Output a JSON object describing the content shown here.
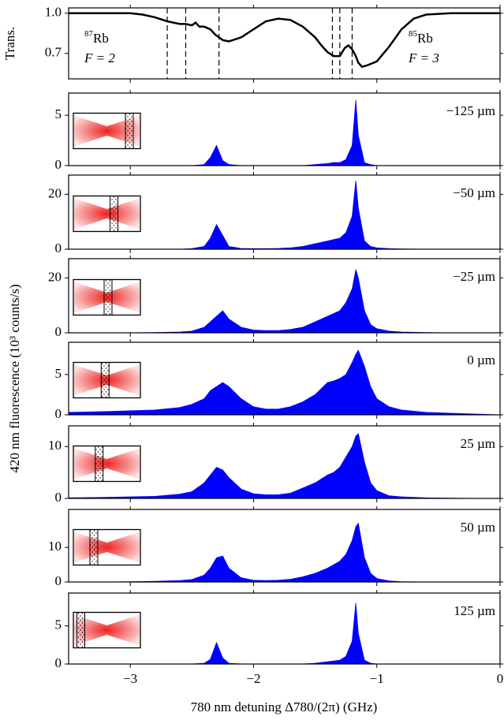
{
  "chart_data": [
    {
      "type": "line",
      "ylabel": "Trans.",
      "x": [
        -3.5,
        -3.0,
        -2.9,
        -2.8,
        -2.7,
        -2.6,
        -2.55,
        -2.5,
        -2.47,
        -2.44,
        -2.4,
        -2.35,
        -2.31,
        -2.28,
        -2.25,
        -2.2,
        -2.1,
        -2.0,
        -1.9,
        -1.8,
        -1.7,
        -1.6,
        -1.5,
        -1.45,
        -1.4,
        -1.35,
        -1.3,
        -1.26,
        -1.23,
        -1.2,
        -1.17,
        -1.15,
        -1.12,
        -1.08,
        -1.0,
        -0.9,
        -0.8,
        -0.7,
        -0.6,
        -0.4,
        0
      ],
      "values": [
        1.0,
        1.0,
        0.99,
        0.97,
        0.94,
        0.92,
        0.92,
        0.91,
        0.93,
        0.9,
        0.9,
        0.88,
        0.84,
        0.82,
        0.8,
        0.79,
        0.82,
        0.88,
        0.94,
        0.96,
        0.95,
        0.9,
        0.82,
        0.76,
        0.71,
        0.68,
        0.68,
        0.74,
        0.76,
        0.73,
        0.68,
        0.63,
        0.6,
        0.61,
        0.64,
        0.75,
        0.88,
        0.96,
        0.99,
        1.0,
        1.0
      ],
      "color": "#000000",
      "vlines": [
        -2.7,
        -2.55,
        -2.28,
        -1.36,
        -1.3,
        -1.2
      ],
      "ylim": [
        0.51,
        1.04
      ],
      "yticks": [
        {
          "value": 0.7,
          "label": "0.7"
        },
        {
          "value": 1,
          "label": "1.0"
        }
      ],
      "annotations": [
        {
          "mass": "87",
          "element": "Rb",
          "level": "F = 2"
        },
        {
          "mass": "85",
          "element": "Rb",
          "level": "F = 3"
        }
      ]
    },
    {
      "type": "area",
      "label": "−125 µm",
      "color": "#0000ff",
      "ylim": [
        0,
        7.2
      ],
      "yticks": [
        0,
        5
      ],
      "x": [
        -3.5,
        -3.2,
        -3.0,
        -2.8,
        -2.6,
        -2.5,
        -2.4,
        -2.35,
        -2.3,
        -2.25,
        -2.2,
        -2.1,
        -2.0,
        -1.9,
        -1.8,
        -1.7,
        -1.6,
        -1.5,
        -1.4,
        -1.35,
        -1.3,
        -1.25,
        -1.2,
        -1.17,
        -1.15,
        -1.1,
        -1.05,
        -1.0,
        -0.9,
        -0.8,
        -0.6,
        -0.4,
        -0.2,
        0
      ],
      "values": [
        0,
        0,
        0,
        0,
        0,
        0,
        0.1,
        0.8,
        2.0,
        0.5,
        0.1,
        0,
        0,
        0,
        0,
        0,
        0,
        0.1,
        0.2,
        0.3,
        0.3,
        0.6,
        2.0,
        6.5,
        3.0,
        0.3,
        0.1,
        0,
        0,
        0,
        0,
        0,
        0,
        0
      ]
    },
    {
      "type": "area",
      "label": "−50 µm",
      "color": "#0000ff",
      "ylim": [
        0,
        27
      ],
      "yticks": [
        0,
        20
      ],
      "x": [
        -3.5,
        -3.2,
        -3.0,
        -2.8,
        -2.6,
        -2.5,
        -2.4,
        -2.35,
        -2.3,
        -2.25,
        -2.2,
        -2.1,
        -2.0,
        -1.9,
        -1.8,
        -1.7,
        -1.6,
        -1.5,
        -1.4,
        -1.35,
        -1.3,
        -1.25,
        -1.2,
        -1.17,
        -1.15,
        -1.1,
        -1.05,
        -1.0,
        -0.9,
        -0.8,
        -0.6,
        -0.4,
        -0.2,
        0
      ],
      "values": [
        0,
        0,
        0,
        0,
        0,
        0.2,
        1,
        4,
        9,
        5,
        1,
        0.3,
        0.2,
        0.2,
        0.3,
        0.5,
        1,
        2,
        3,
        3.5,
        4,
        6,
        12,
        25,
        15,
        3,
        1,
        0.5,
        0.2,
        0.1,
        0,
        0,
        0,
        0
      ]
    },
    {
      "type": "area",
      "label": "−25 µm",
      "color": "#0000ff",
      "ylim": [
        0,
        27
      ],
      "yticks": [
        0,
        20
      ],
      "x": [
        -3.5,
        -3.2,
        -3.0,
        -2.8,
        -2.6,
        -2.5,
        -2.4,
        -2.35,
        -2.3,
        -2.25,
        -2.2,
        -2.1,
        -2.0,
        -1.9,
        -1.8,
        -1.7,
        -1.6,
        -1.5,
        -1.4,
        -1.35,
        -1.3,
        -1.25,
        -1.2,
        -1.17,
        -1.15,
        -1.1,
        -1.05,
        -1.0,
        -0.9,
        -0.8,
        -0.6,
        -0.4,
        -0.2,
        0
      ],
      "values": [
        0,
        0,
        0,
        0.1,
        0.3,
        0.6,
        2,
        4,
        6,
        8,
        5,
        2,
        1,
        0.8,
        0.8,
        1.2,
        2,
        4,
        6,
        7,
        8,
        11,
        16,
        23,
        20,
        8,
        3,
        1.5,
        0.6,
        0.3,
        0.1,
        0,
        0,
        0
      ]
    },
    {
      "type": "area",
      "label": "0 µm",
      "color": "#0000ff",
      "ylim": [
        0,
        9
      ],
      "yticks": [
        0,
        5
      ],
      "x": [
        -3.5,
        -3.2,
        -3.0,
        -2.8,
        -2.6,
        -2.5,
        -2.4,
        -2.35,
        -2.3,
        -2.25,
        -2.2,
        -2.1,
        -2.0,
        -1.9,
        -1.8,
        -1.7,
        -1.6,
        -1.5,
        -1.4,
        -1.35,
        -1.3,
        -1.25,
        -1.2,
        -1.17,
        -1.15,
        -1.1,
        -1.05,
        -1.0,
        -0.9,
        -0.8,
        -0.6,
        -0.4,
        -0.2,
        0
      ],
      "values": [
        0.3,
        0.4,
        0.5,
        0.6,
        0.9,
        1.3,
        2,
        3,
        3.5,
        4,
        3.5,
        2,
        1,
        0.7,
        0.7,
        1,
        1.6,
        2.5,
        4,
        4.2,
        4.5,
        5,
        6.5,
        7.5,
        8,
        6,
        3.5,
        2,
        1,
        0.6,
        0.3,
        0.2,
        0.1,
        0
      ]
    },
    {
      "type": "area",
      "label": "25 µm",
      "color": "#0000ff",
      "ylim": [
        0,
        14
      ],
      "yticks": [
        0,
        10
      ],
      "x": [
        -3.5,
        -3.2,
        -3.0,
        -2.8,
        -2.6,
        -2.5,
        -2.4,
        -2.35,
        -2.3,
        -2.25,
        -2.2,
        -2.1,
        -2.0,
        -1.9,
        -1.8,
        -1.7,
        -1.6,
        -1.5,
        -1.4,
        -1.35,
        -1.3,
        -1.25,
        -1.2,
        -1.17,
        -1.15,
        -1.1,
        -1.05,
        -1.0,
        -0.9,
        -0.8,
        -0.6,
        -0.4,
        -0.2,
        0
      ],
      "values": [
        0.1,
        0.2,
        0.3,
        0.4,
        0.8,
        1.3,
        3,
        4.5,
        6,
        5.5,
        4,
        1.8,
        0.9,
        0.7,
        0.7,
        1,
        2,
        3,
        4.5,
        5,
        6,
        8,
        10,
        12,
        12.5,
        7,
        3,
        1.5,
        0.5,
        0.3,
        0.1,
        0.05,
        0,
        0
      ]
    },
    {
      "type": "area",
      "label": "50 µm",
      "color": "#0000ff",
      "ylim": [
        0,
        21
      ],
      "yticks": [
        0,
        10
      ],
      "x": [
        -3.5,
        -3.2,
        -3.0,
        -2.8,
        -2.6,
        -2.5,
        -2.4,
        -2.35,
        -2.3,
        -2.25,
        -2.2,
        -2.1,
        -2.0,
        -1.9,
        -1.8,
        -1.7,
        -1.6,
        -1.5,
        -1.4,
        -1.35,
        -1.3,
        -1.25,
        -1.2,
        -1.17,
        -1.15,
        -1.1,
        -1.05,
        -1.0,
        -0.9,
        -0.8,
        -0.6,
        -0.4,
        -0.2,
        0
      ],
      "values": [
        0,
        0,
        0.1,
        0.2,
        0.4,
        0.7,
        2,
        4,
        7,
        7.5,
        4,
        1.2,
        0.5,
        0.4,
        0.5,
        0.8,
        1.5,
        2.5,
        4,
        5,
        6,
        8,
        12,
        16,
        17,
        7,
        2.5,
        1,
        0.3,
        0.1,
        0,
        0,
        0,
        0
      ]
    },
    {
      "type": "area",
      "label": "125 µm",
      "color": "#0000ff",
      "ylim": [
        0,
        9.3
      ],
      "yticks": [
        0,
        5
      ],
      "x": [
        -3.5,
        -3.2,
        -3.0,
        -2.8,
        -2.6,
        -2.5,
        -2.4,
        -2.35,
        -2.3,
        -2.25,
        -2.2,
        -2.1,
        -2.0,
        -1.9,
        -1.8,
        -1.7,
        -1.6,
        -1.5,
        -1.4,
        -1.35,
        -1.3,
        -1.25,
        -1.2,
        -1.17,
        -1.15,
        -1.1,
        -1.05,
        -1.0,
        -0.9,
        -0.8,
        -0.6,
        -0.4,
        -0.2,
        0
      ],
      "values": [
        0,
        0,
        0,
        0,
        0,
        0,
        0.1,
        0.6,
        2.8,
        0.8,
        0.1,
        0,
        0,
        0,
        0,
        0,
        0,
        0.1,
        0.3,
        0.4,
        0.5,
        1,
        3,
        8,
        4,
        0.5,
        0.1,
        0,
        0,
        0,
        0,
        0,
        0,
        0
      ]
    }
  ],
  "shared_axes": {
    "xlabel": "780 nm detuning Δ780/(2π) (GHz)",
    "ylabel": "420 nm fluorescence (10³ counts/s)",
    "xlim": [
      -3.5,
      0
    ],
    "xticks": [
      {
        "value": -3,
        "label": "−3"
      },
      {
        "value": -2,
        "label": "−2"
      },
      {
        "value": -1,
        "label": "−1"
      },
      0
    ]
  }
}
